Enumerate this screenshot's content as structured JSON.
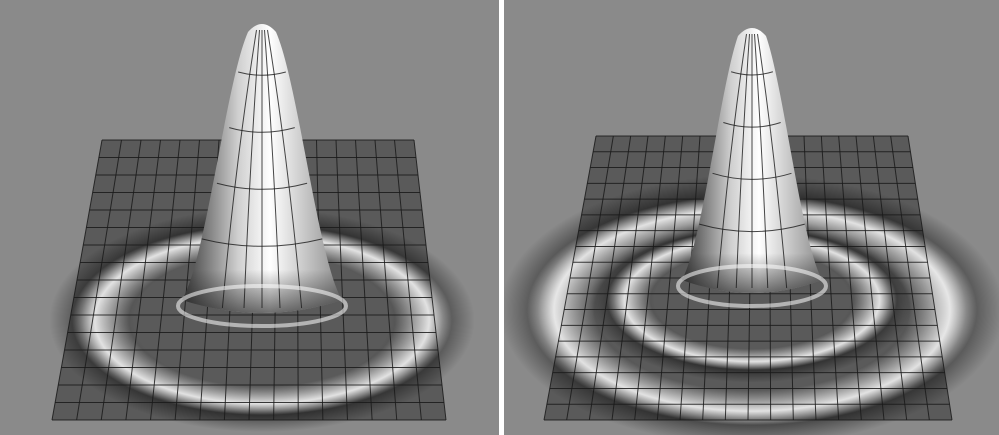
{
  "figure": {
    "background_color": "#8a8a8a",
    "divider_color": "#ffffff",
    "surface_grid_color": "#1a1a1a",
    "peak_highlight_color": "#ffffff"
  },
  "panels": [
    {
      "name": "left-surface-plot",
      "rings_visible": 1
    },
    {
      "name": "right-surface-plot",
      "rings_visible": 2
    }
  ]
}
